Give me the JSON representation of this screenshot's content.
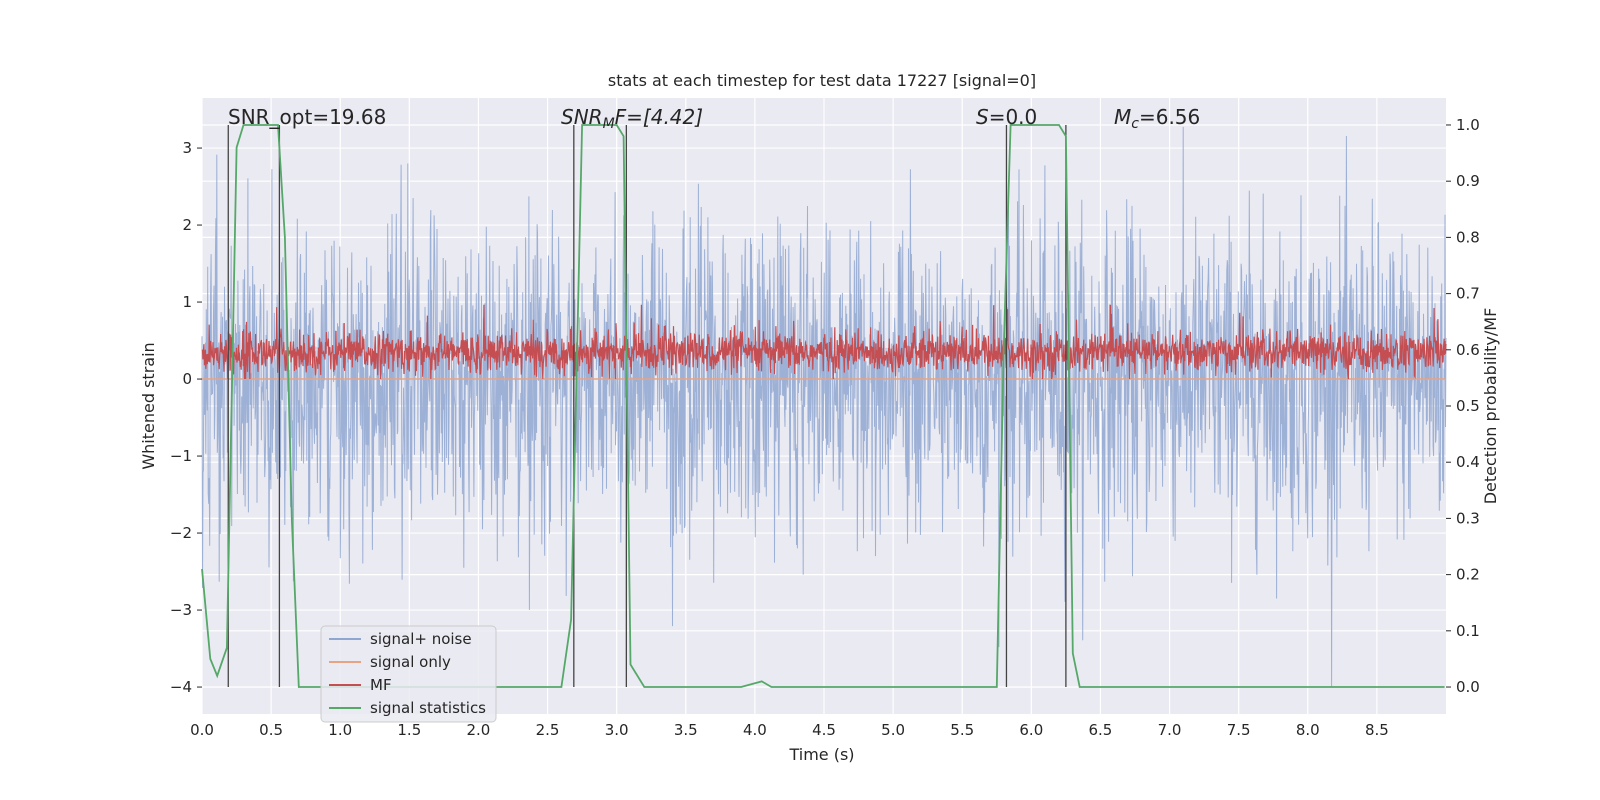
{
  "chart_data": {
    "type": "line",
    "title": "stats at each timestep for test data 17227 [signal=0]",
    "xlabel": "Time (s)",
    "ylabel": "Whitened strain",
    "y2label": "Detection probability/MF",
    "xlim": [
      0.0,
      9.0
    ],
    "ylim": [
      -4.35,
      3.65
    ],
    "y2lim": [
      -0.048,
      1.048
    ],
    "xticks": [
      "0.0",
      "0.5",
      "1.0",
      "1.5",
      "2.0",
      "2.5",
      "3.0",
      "3.5",
      "4.0",
      "4.5",
      "5.0",
      "5.5",
      "6.0",
      "6.5",
      "7.0",
      "7.5",
      "8.0",
      "8.5"
    ],
    "yticks": [
      "−4",
      "−3",
      "−2",
      "−1",
      "0",
      "1",
      "2",
      "3"
    ],
    "y2ticks": [
      "0.0",
      "0.1",
      "0.2",
      "0.3",
      "0.4",
      "0.5",
      "0.6",
      "0.7",
      "0.8",
      "0.9",
      "1.0"
    ],
    "grid": true,
    "legend_position": "lower-left",
    "annotations": {
      "snr_opt": "SNR_opt=19.68",
      "snr_mf_sym": "SNR",
      "snr_mf_sub": "M",
      "snr_mf_rest": "F=[4.42]",
      "s_sym": "S",
      "s_rest": "=0.0",
      "mc_sym": "M",
      "mc_sub": "c",
      "mc_rest": "=6.56"
    },
    "vertical_markers": [
      0.19,
      0.56,
      2.69,
      3.07,
      5.82,
      6.25
    ],
    "series": [
      {
        "name": "signal+ noise",
        "color": "#8fa6d0",
        "axis": "left",
        "description_values": "noise band approx within [-2.2, 2.2] with spikes to +3.3 / -4.0",
        "band": [
          -2.2,
          2.2
        ],
        "spike_max": 3.3,
        "spike_min": -4.0
      },
      {
        "name": "signal only",
        "color": "#e8a383",
        "axis": "left",
        "values_const": 0.0
      },
      {
        "name": "MF",
        "color": "#c44e52",
        "axis": "right",
        "band": [
          0.555,
          0.635
        ],
        "spike_max": 0.68
      },
      {
        "name": "signal statistics",
        "color": "#55a868",
        "axis": "right",
        "x": [
          0.0,
          0.06,
          0.11,
          0.18,
          0.25,
          0.3,
          0.35,
          0.55,
          0.6,
          0.65,
          0.7,
          0.75,
          2.6,
          2.67,
          2.75,
          3.0,
          3.05,
          3.1,
          3.2,
          3.9,
          4.05,
          4.12,
          4.2,
          5.75,
          5.8,
          5.85,
          6.2,
          6.25,
          6.3,
          6.35,
          8.99
        ],
        "y": [
          0.21,
          0.05,
          0.02,
          0.07,
          0.96,
          1.0,
          1.0,
          1.0,
          0.8,
          0.3,
          0.0,
          0.0,
          0.0,
          0.12,
          1.0,
          1.0,
          0.98,
          0.04,
          0.0,
          0.0,
          0.01,
          0.0,
          0.0,
          0.0,
          0.6,
          1.0,
          1.0,
          0.98,
          0.06,
          0.0,
          0.0
        ]
      }
    ]
  }
}
